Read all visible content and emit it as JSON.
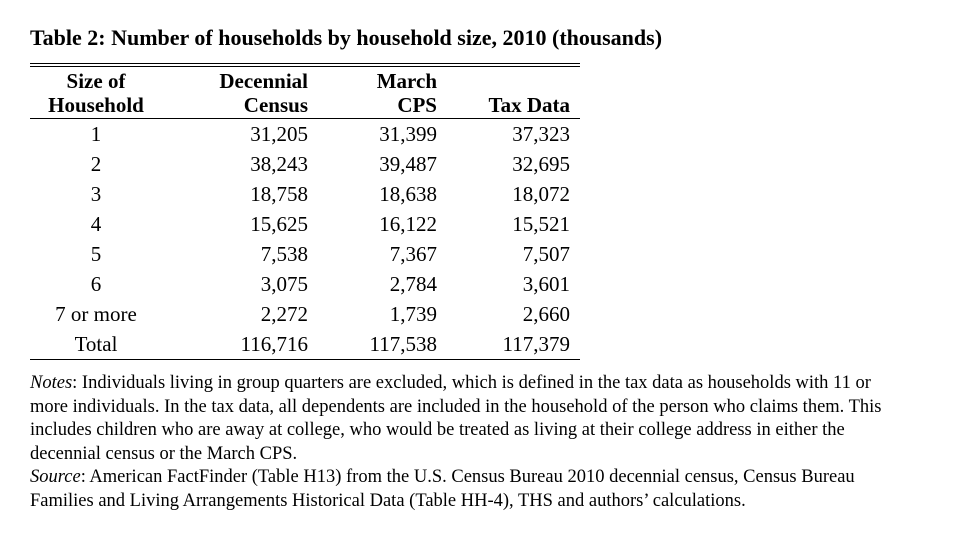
{
  "title": "Table 2: Number of households by household size, 2010 (thousands)",
  "colors": {
    "text": "#000000",
    "background": "#ffffff",
    "rule": "#000000"
  },
  "table": {
    "columns": [
      {
        "line1": "Size of",
        "line2": "Household"
      },
      {
        "line1": "Decennial",
        "line2": "Census"
      },
      {
        "line1": "March",
        "line2": "CPS"
      },
      {
        "line1": "",
        "line2": "Tax Data"
      }
    ],
    "rows": [
      {
        "size": "1",
        "census": "31,205",
        "cps": "31,399",
        "tax": "37,323"
      },
      {
        "size": "2",
        "census": "38,243",
        "cps": "39,487",
        "tax": "32,695"
      },
      {
        "size": "3",
        "census": "18,758",
        "cps": "18,638",
        "tax": "18,072"
      },
      {
        "size": "4",
        "census": "15,625",
        "cps": "16,122",
        "tax": "15,521"
      },
      {
        "size": "5",
        "census": "7,538",
        "cps": "7,367",
        "tax": "7,507"
      },
      {
        "size": "6",
        "census": "3,075",
        "cps": "2,784",
        "tax": "3,601"
      },
      {
        "size": "7 or more",
        "census": "2,272",
        "cps": "1,739",
        "tax": "2,660"
      },
      {
        "size": "Total",
        "census": "116,716",
        "cps": "117,538",
        "tax": "117,379"
      }
    ]
  },
  "notes": {
    "label": "Notes",
    "line1_rest": ": Individuals living in group quarters are excluded, which is defined in the tax data as households with 11 or",
    "line2": "more individuals. In the tax data, all dependents are included in the household of the person who claims them. This",
    "line3": "includes children who are away at college, who would be treated as living at their college address in either the",
    "line4": "decennial census or the March CPS."
  },
  "source": {
    "label": "Source",
    "line1_rest": ": American FactFinder (Table H13) from the U.S. Census Bureau 2010 decennial census, Census Bureau",
    "line2": "Families and Living Arrangements Historical Data (Table HH-4), THS and authors’ calculations."
  }
}
